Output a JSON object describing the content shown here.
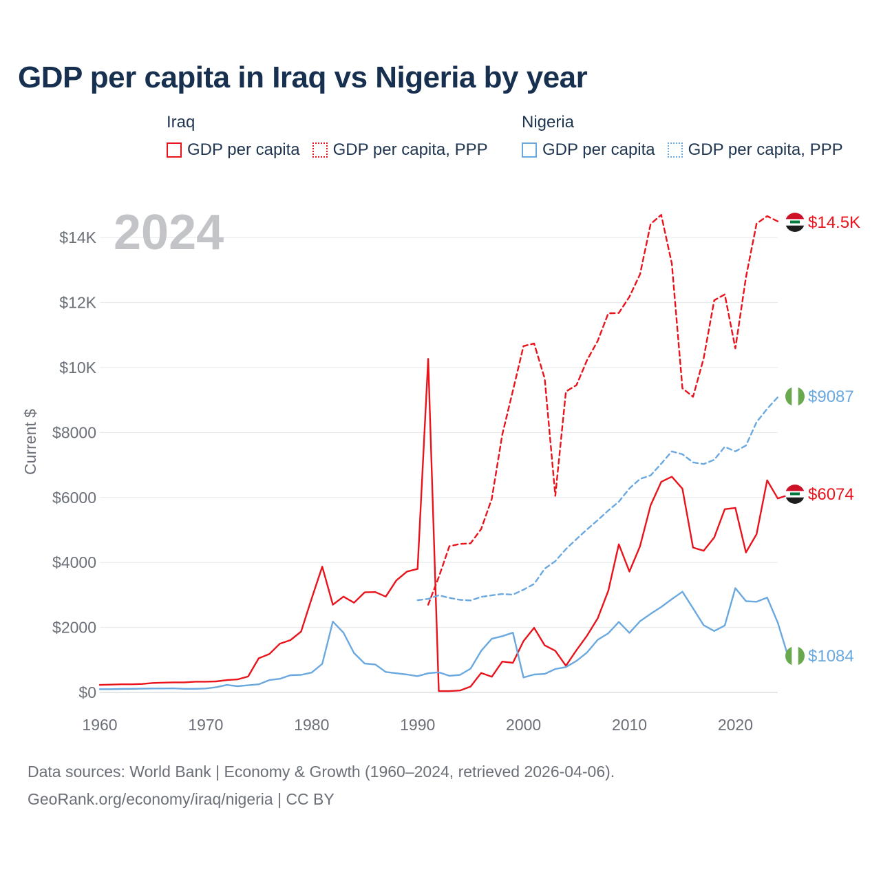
{
  "title": "GDP per capita in Iraq vs Nigeria by year",
  "year_badge": "2024",
  "legend": {
    "groups": [
      {
        "country": "Iraq",
        "color": "#e8131b",
        "items": [
          {
            "label": "GDP per capita",
            "style": "solid"
          },
          {
            "label": "GDP per capita, PPP",
            "style": "dashed"
          }
        ]
      },
      {
        "country": "Nigeria",
        "color": "#6aa8e0",
        "items": [
          {
            "label": "GDP per capita",
            "style": "solid"
          },
          {
            "label": "GDP per capita, PPP",
            "style": "dashed"
          }
        ]
      }
    ]
  },
  "end_labels": {
    "iraq_ppp": "$14.5K",
    "nigeria_ppp": "$9087",
    "iraq_gdp": "$6074",
    "nigeria_gdp": "$1084"
  },
  "source": {
    "line1": "Data sources: World Bank | Economy & Growth (1960–2024, retrieved 2026-04-06).",
    "line2": "GeoRank.org/economy/iraq/nigeria | CC BY"
  },
  "chart_data": {
    "type": "line",
    "title": "GDP per capita in Iraq vs Nigeria by year",
    "xlabel": "",
    "ylabel": "Current $",
    "xlim": [
      1960,
      2024
    ],
    "ylim": [
      0,
      15000
    ],
    "x_ticks": [
      1960,
      1970,
      1980,
      1990,
      2000,
      2010,
      2020
    ],
    "x_tick_labels": [
      "1960",
      "1970",
      "1980",
      "1990",
      "2000",
      "2010",
      "2020"
    ],
    "y_ticks": [
      0,
      2000,
      4000,
      6000,
      8000,
      10000,
      12000,
      14000
    ],
    "y_tick_labels": [
      "$0",
      "$2000",
      "$4000",
      "$6000",
      "$8000",
      "$10K",
      "$12K",
      "$14K"
    ],
    "grid": true,
    "series": [
      {
        "name": "Iraq GDP per capita",
        "color": "#e8131b",
        "style": "solid",
        "x_start": 1960,
        "values": [
          230,
          240,
          250,
          250,
          260,
          290,
          300,
          310,
          310,
          330,
          330,
          340,
          380,
          400,
          490,
          1050,
          1180,
          1500,
          1610,
          1870,
          2890,
          3870,
          2700,
          2950,
          2760,
          3080,
          3090,
          2950,
          3450,
          3720,
          3800,
          10270,
          40,
          40,
          60,
          180,
          600,
          480,
          950,
          910,
          1580,
          1990,
          1450,
          1280,
          820,
          1300,
          1750,
          2280,
          3130,
          4560,
          3720,
          4500,
          5760,
          6480,
          6640,
          6270,
          4460,
          4360,
          4770,
          5640,
          5680,
          4310,
          4870,
          6530,
          5970,
          6074
        ]
      },
      {
        "name": "Iraq GDP per capita, PPP",
        "color": "#e8131b",
        "style": "dashed",
        "x_start": 1991,
        "values": [
          2700,
          3550,
          4500,
          4570,
          4590,
          5030,
          5960,
          7940,
          9290,
          10660,
          10740,
          9660,
          6050,
          9260,
          9460,
          10230,
          10820,
          11670,
          11680,
          12180,
          12870,
          14420,
          14700,
          13200,
          9360,
          9100,
          10280,
          12070,
          12250,
          10590,
          12780,
          14430,
          14660,
          14500
        ]
      },
      {
        "name": "Nigeria GDP per capita",
        "color": "#6aa8e0",
        "style": "solid",
        "x_start": 1960,
        "values": [
          100,
          100,
          105,
          110,
          115,
          120,
          120,
          125,
          110,
          110,
          120,
          160,
          230,
          190,
          220,
          250,
          380,
          420,
          530,
          540,
          610,
          880,
          2180,
          1840,
          1210,
          890,
          860,
          630,
          590,
          550,
          500,
          590,
          620,
          510,
          540,
          730,
          1280,
          1650,
          1730,
          1840,
          460,
          550,
          570,
          720,
          780,
          970,
          1230,
          1620,
          1820,
          2170,
          1830,
          2190,
          2420,
          2630,
          2870,
          3100,
          2590,
          2070,
          1890,
          2060,
          3210,
          2810,
          2790,
          2920,
          2150,
          1084
        ]
      },
      {
        "name": "Nigeria GDP per capita, PPP",
        "color": "#6aa8e0",
        "style": "dashed",
        "x_start": 1990,
        "values": [
          2840,
          2880,
          2990,
          2910,
          2850,
          2830,
          2940,
          2990,
          3030,
          3010,
          3160,
          3340,
          3810,
          4040,
          4410,
          4720,
          5020,
          5300,
          5600,
          5870,
          6280,
          6570,
          6680,
          7040,
          7420,
          7330,
          7080,
          7030,
          7160,
          7560,
          7420,
          7600,
          8320,
          8730,
          9087
        ]
      }
    ]
  }
}
